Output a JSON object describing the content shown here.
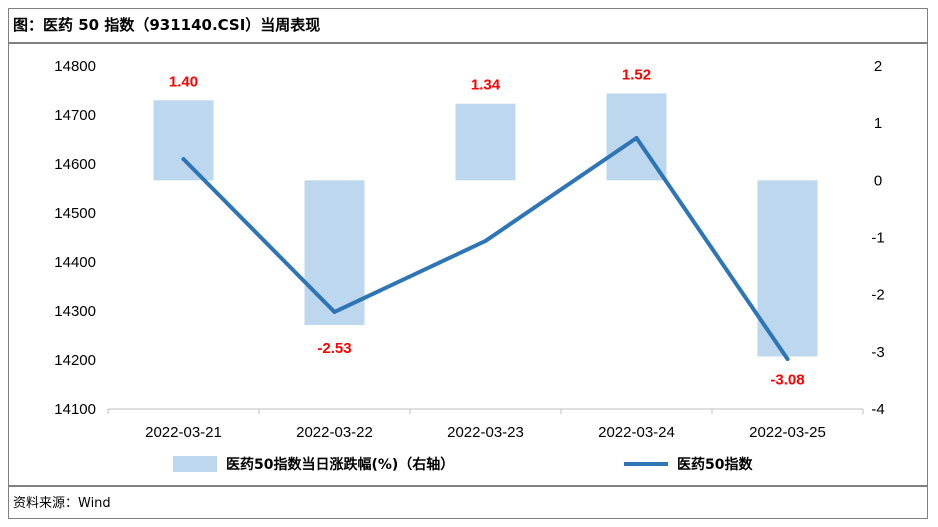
{
  "title": "图：医药 50 指数（931140.CSI）当周表现",
  "source": "资料来源：Wind",
  "chart_data": {
    "type": "bar+line",
    "categories": [
      "2022-03-21",
      "2022-03-22",
      "2022-03-23",
      "2022-03-24",
      "2022-03-25"
    ],
    "series": [
      {
        "name": "医药50指数当日涨跌幅(%)（右轴）",
        "type": "bar",
        "axis": "right",
        "values": [
          1.4,
          -2.53,
          1.34,
          1.52,
          -3.08
        ],
        "data_labels": [
          "1.40",
          "-2.53",
          "1.34",
          "1.52",
          "-3.08"
        ],
        "color": "#bdd7ee"
      },
      {
        "name": "医药50指数",
        "type": "line",
        "axis": "left",
        "values": [
          14610,
          14298,
          14443,
          14653,
          14202
        ],
        "color": "#2e75b6"
      }
    ],
    "left_axis": {
      "min": 14100,
      "max": 14800,
      "step": 100,
      "ticks": [
        "14800",
        "14700",
        "14600",
        "14500",
        "14400",
        "14300",
        "14200",
        "14100"
      ]
    },
    "right_axis": {
      "min": -4,
      "max": 2,
      "step": 1,
      "ticks": [
        "2",
        "1",
        "0",
        "-1",
        "-2",
        "-3",
        "-4"
      ]
    },
    "label_color": "#ff0000",
    "grid": false,
    "legend_position": "bottom"
  }
}
